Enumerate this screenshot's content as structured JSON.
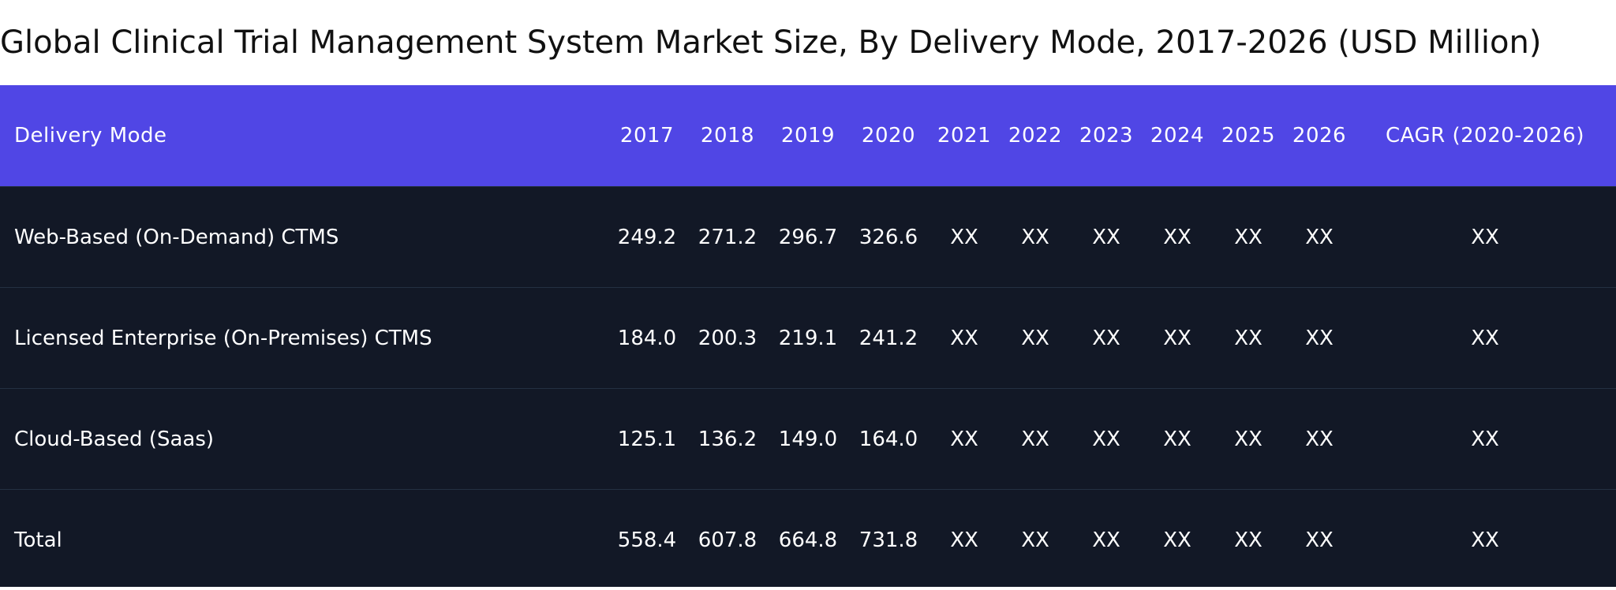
{
  "title": "Global Clinical Trial Management System Market Size, By Delivery Mode, 2017-2026 (USD Million)",
  "colors": {
    "header_bg": "#5046e5",
    "body_bg": "#121826",
    "divider": "#243042",
    "text": "#ffffff"
  },
  "chart_data": {
    "type": "table",
    "title": "Global Clinical Trial Management System Market Size, By Delivery Mode, 2017-2026 (USD Million)",
    "columns": [
      "Delivery Mode",
      "2017",
      "2018",
      "2019",
      "2020",
      "2021",
      "2022",
      "2023",
      "2024",
      "2025",
      "2026",
      "CAGR (2020-2026)"
    ],
    "rows": [
      [
        "Web-Based (On-Demand) CTMS",
        "249.2",
        "271.2",
        "296.7",
        "326.6",
        "XX",
        "XX",
        "XX",
        "XX",
        "XX",
        "XX",
        "XX"
      ],
      [
        "Licensed Enterprise (On-Premises) CTMS",
        "184.0",
        "200.3",
        "219.1",
        "241.2",
        "XX",
        "XX",
        "XX",
        "XX",
        "XX",
        "XX",
        "XX"
      ],
      [
        "Cloud-Based (Saas)",
        "125.1",
        "136.2",
        "149.0",
        "164.0",
        "XX",
        "XX",
        "XX",
        "XX",
        "XX",
        "XX",
        "XX"
      ],
      [
        "Total",
        "558.4",
        "607.8",
        "664.8",
        "731.8",
        "XX",
        "XX",
        "XX",
        "XX",
        "XX",
        "XX",
        "XX"
      ]
    ]
  }
}
